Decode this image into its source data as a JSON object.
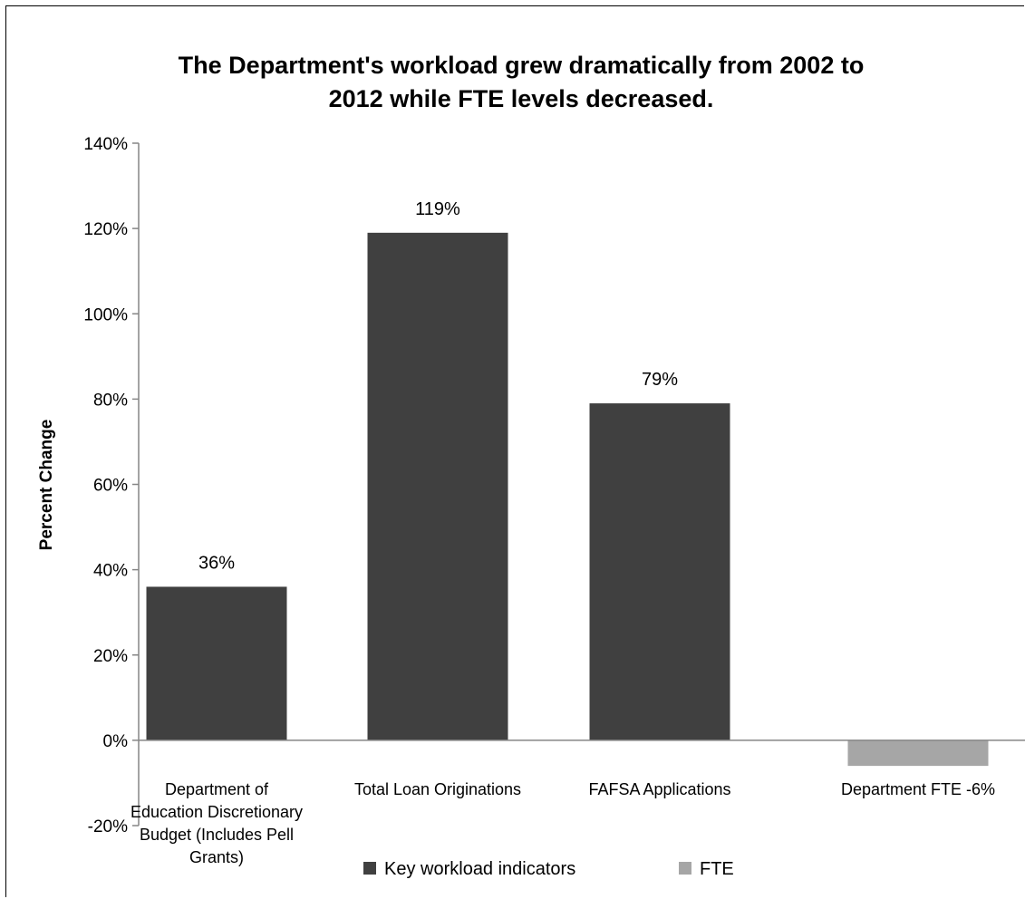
{
  "chart_data": {
    "type": "bar",
    "title_lines": [
      "The Department's workload grew dramatically from 2002 to",
      "2012 while FTE levels decreased."
    ],
    "ylabel": "Percent Change",
    "xlabel": "",
    "ylim": [
      -20,
      140
    ],
    "yticks": [
      -20,
      0,
      20,
      40,
      60,
      80,
      100,
      120,
      140
    ],
    "ytick_labels": [
      "-20%",
      "0%",
      "20%",
      "40%",
      "60%",
      "80%",
      "100%",
      "120%",
      "140%"
    ],
    "grid": false,
    "categories": [
      {
        "lines": [
          "Department of",
          "Education Discretionary",
          "Budget (Includes Pell",
          "Grants)"
        ],
        "value": 36,
        "series": 0,
        "value_label": "36%"
      },
      {
        "lines": [
          "Total Loan Originations"
        ],
        "value": 119,
        "series": 0,
        "value_label": "119%"
      },
      {
        "lines": [
          "FAFSA Applications"
        ],
        "value": 79,
        "series": 0,
        "value_label": "79%"
      },
      {
        "lines": [
          "Department FTE -6%"
        ],
        "value": -6,
        "series": 1,
        "value_label": ""
      }
    ],
    "series": [
      {
        "name": "Key workload indicators",
        "color": "#404040"
      },
      {
        "name": "FTE",
        "color": "#a6a6a6"
      }
    ],
    "legend_position": "bottom"
  }
}
